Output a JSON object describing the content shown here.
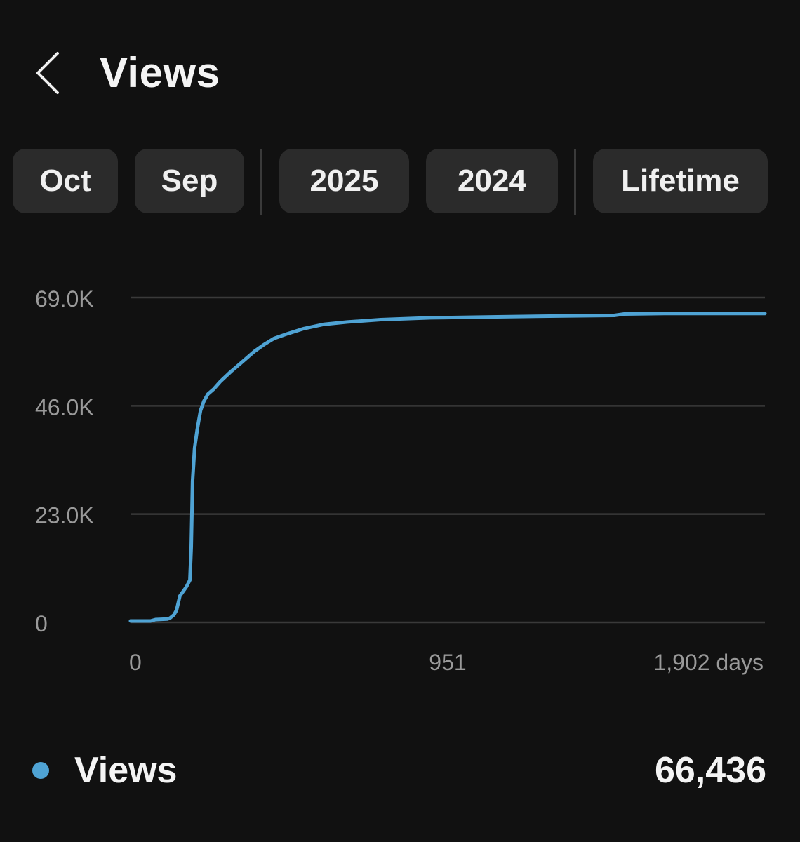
{
  "header": {
    "title": "Views",
    "back_icon": "chevron-left-icon"
  },
  "filters": {
    "chips": [
      {
        "label": "Oct"
      },
      {
        "label": "Sep"
      },
      {
        "label": "2025"
      },
      {
        "label": "2024"
      },
      {
        "label": "Lifetime"
      }
    ]
  },
  "colors": {
    "background": "#111111",
    "chip_background": "#2b2b2b",
    "series": "#4fa3d4",
    "gridline": "#3a3a3a",
    "axis_text": "#9a9a9a"
  },
  "chart_data": {
    "type": "line",
    "title": "",
    "xlabel": "",
    "ylabel": "",
    "xlim": [
      0,
      1902
    ],
    "ylim": [
      0,
      69000
    ],
    "x_ticks": [
      {
        "value": 0,
        "label": "0"
      },
      {
        "value": 951,
        "label": "951"
      },
      {
        "value": 1902,
        "label": "1,902 days"
      }
    ],
    "y_ticks": [
      {
        "value": 0,
        "label": "0"
      },
      {
        "value": 23000,
        "label": "23.0K"
      },
      {
        "value": 46000,
        "label": "46.0K"
      },
      {
        "value": 69000,
        "label": "69.0K"
      }
    ],
    "grid": true,
    "series": [
      {
        "name": "Views",
        "color": "#4fa3d4",
        "points": [
          [
            0,
            300
          ],
          [
            60,
            300
          ],
          [
            75,
            600
          ],
          [
            110,
            700
          ],
          [
            118,
            900
          ],
          [
            130,
            1600
          ],
          [
            138,
            2600
          ],
          [
            148,
            5600
          ],
          [
            158,
            6600
          ],
          [
            168,
            7600
          ],
          [
            178,
            9000
          ],
          [
            182,
            16000
          ],
          [
            186,
            30000
          ],
          [
            192,
            37000
          ],
          [
            200,
            41000
          ],
          [
            205,
            43000
          ],
          [
            210,
            45000
          ],
          [
            220,
            47000
          ],
          [
            232,
            48500
          ],
          [
            250,
            49600
          ],
          [
            270,
            51200
          ],
          [
            300,
            53200
          ],
          [
            330,
            55000
          ],
          [
            370,
            57500
          ],
          [
            400,
            59000
          ],
          [
            430,
            60300
          ],
          [
            470,
            61300
          ],
          [
            520,
            62400
          ],
          [
            580,
            63300
          ],
          [
            650,
            63800
          ],
          [
            750,
            64300
          ],
          [
            900,
            64700
          ],
          [
            1100,
            64900
          ],
          [
            1300,
            65100
          ],
          [
            1450,
            65200
          ],
          [
            1480,
            65500
          ],
          [
            1600,
            65600
          ],
          [
            1902,
            65600
          ]
        ]
      }
    ]
  },
  "legend": {
    "label": "Views",
    "value": "66,436"
  }
}
